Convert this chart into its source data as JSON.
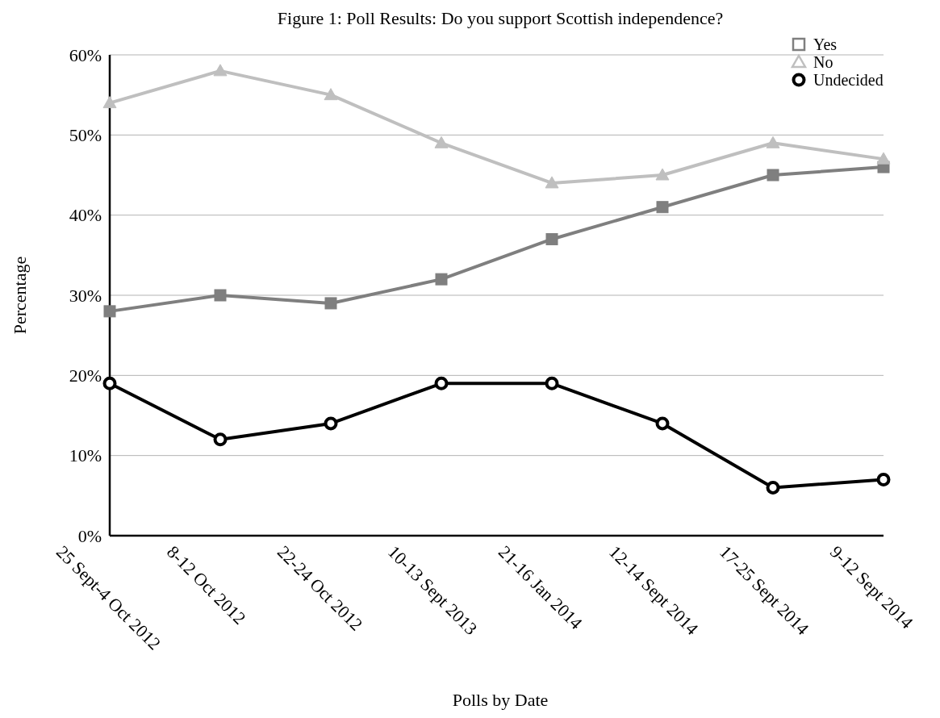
{
  "chart_data": {
    "type": "line",
    "title": "Figure 1: Poll Results: Do you support Scottish independence?",
    "xlabel": "Polls by Date",
    "ylabel": "Percentage",
    "categories": [
      "25 Sept-4 Oct 2012",
      "8-12 Oct 2012",
      "22-24 Oct 2012",
      "10-13 Sept 2013",
      "21-16 Jan 2014",
      "12-14 Sept 2014",
      "17-25 Sept 2014",
      "9-12 Sept 2014"
    ],
    "series": [
      {
        "name": "Yes",
        "color": "#7f7f7f",
        "marker": "square",
        "values": [
          28,
          30,
          29,
          32,
          37,
          41,
          45,
          46
        ]
      },
      {
        "name": "No",
        "color": "#bfbfbf",
        "marker": "triangle",
        "values": [
          54,
          58,
          55,
          49,
          44,
          45,
          49,
          47
        ]
      },
      {
        "name": "Undecided",
        "color": "#000000",
        "marker": "circle",
        "values": [
          19,
          12,
          14,
          19,
          19,
          14,
          6,
          7
        ]
      }
    ],
    "ylim": [
      0,
      60
    ],
    "yticks": [
      {
        "value": 0,
        "label": "0%"
      },
      {
        "value": 10,
        "label": "10%"
      },
      {
        "value": 20,
        "label": "20%"
      },
      {
        "value": 30,
        "label": "30%"
      },
      {
        "value": 40,
        "label": "40%"
      },
      {
        "value": 50,
        "label": "50%"
      },
      {
        "value": 60,
        "label": "60%"
      }
    ],
    "grid": "y",
    "legend": "top right",
    "line_style": "solid"
  }
}
